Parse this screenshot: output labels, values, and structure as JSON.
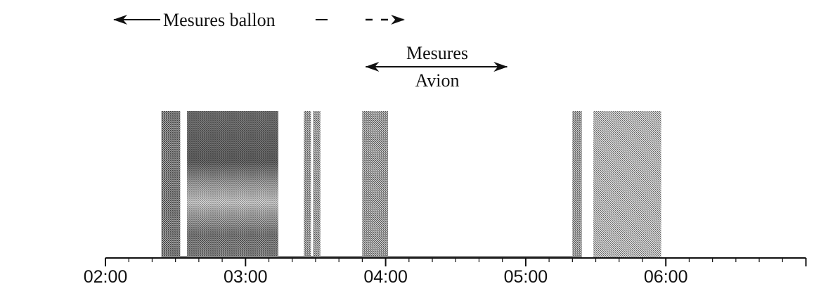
{
  "chart_data": {
    "type": "bar",
    "x_ticks": [
      "02:00",
      "03:00",
      "04:00",
      "05:00",
      "06:00"
    ],
    "xlim_hours": [
      2.0,
      7.0
    ],
    "periods": [
      {
        "start": "02:24",
        "end": "02:32",
        "shade": "#7d7d7d",
        "pattern": "dither-dark"
      },
      {
        "start": "02:35",
        "end": "03:14",
        "shade": "#8a8a8a",
        "pattern": "gradient"
      },
      {
        "start": "03:25",
        "end": "03:28",
        "shade": "#8f8f8f",
        "pattern": "dither-mid"
      },
      {
        "start": "03:29",
        "end": "03:32",
        "shade": "#8f8f8f",
        "pattern": "dither-mid"
      },
      {
        "start": "03:50",
        "end": "04:01",
        "shade": "#959595",
        "pattern": "dither-mid"
      },
      {
        "start": "05:20",
        "end": "05:24",
        "shade": "#9a9a9a",
        "pattern": "dither-mid"
      },
      {
        "start": "05:29",
        "end": "05:58",
        "shade": "#a4a4a4",
        "pattern": "dither-light"
      }
    ],
    "annotations": [
      {
        "text": "Mesures ballon",
        "start": "02:00",
        "solid_end": "03:05",
        "end": "04:08"
      },
      {
        "text": "Mesures Avion",
        "text_lines": [
          "Mesures",
          "Avion"
        ],
        "start": "03:50",
        "end": "04:52"
      }
    ]
  }
}
